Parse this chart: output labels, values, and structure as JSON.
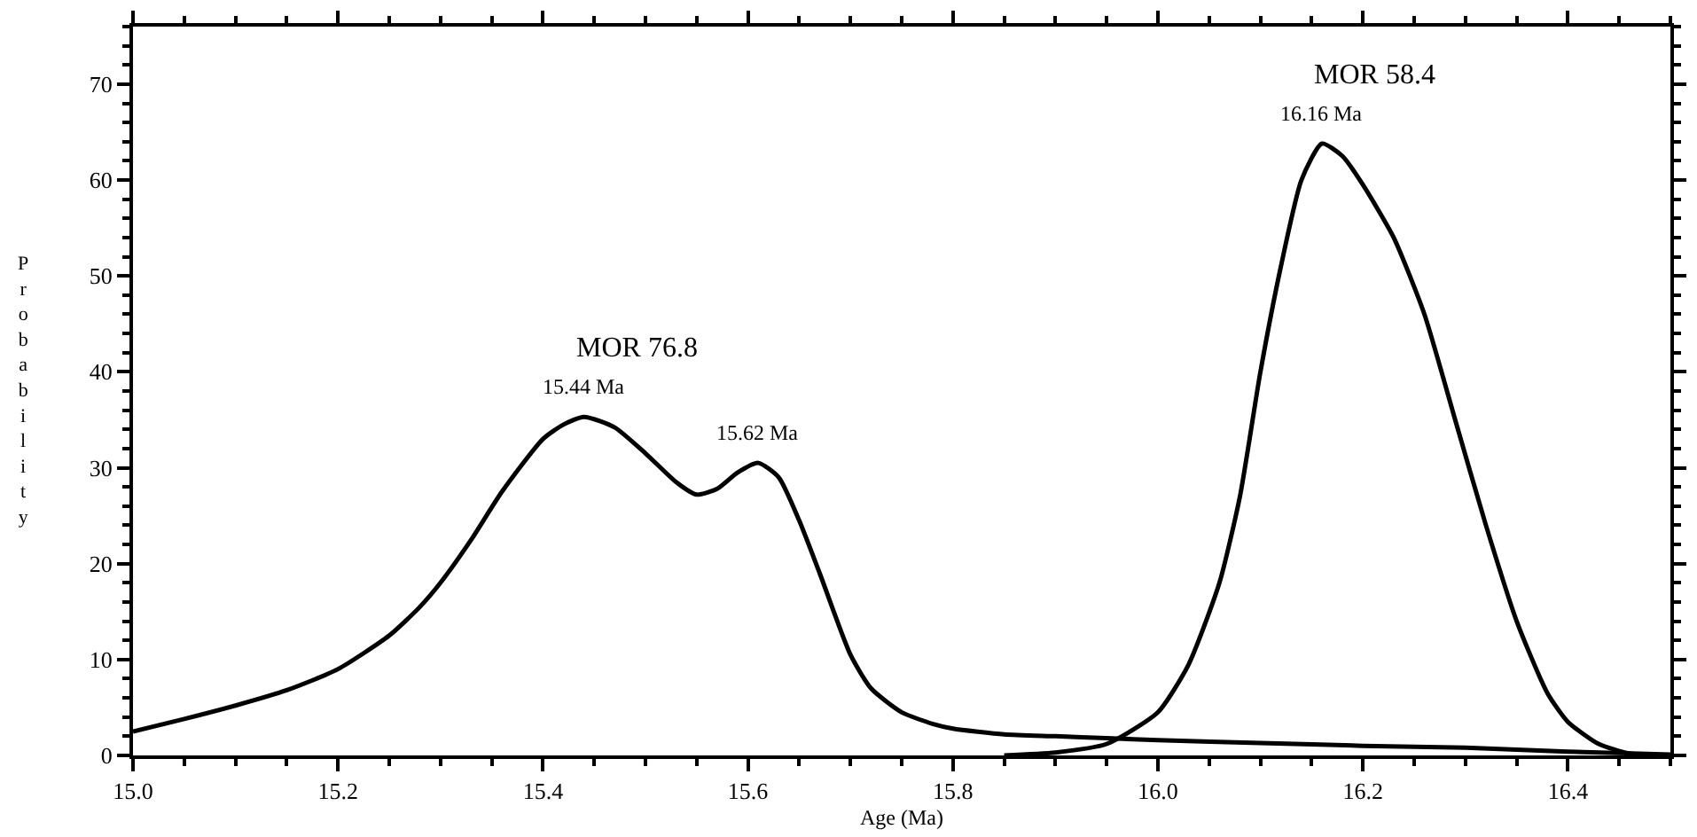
{
  "chart_data": {
    "type": "line",
    "xlabel": "Age (Ma)",
    "ylabel": "Probability",
    "xlim": [
      15.0,
      16.5
    ],
    "ylim": [
      0,
      76
    ],
    "xticks": [
      {
        "value": 15.0,
        "label": "15.0"
      },
      {
        "value": 15.2,
        "label": "15.2"
      },
      {
        "value": 15.4,
        "label": "15.4"
      },
      {
        "value": 15.6,
        "label": "15.6"
      },
      {
        "value": 15.8,
        "label": "15.8"
      },
      {
        "value": 16.0,
        "label": "16.0"
      },
      {
        "value": 16.2,
        "label": "16.2"
      },
      {
        "value": 16.4,
        "label": "16.4"
      }
    ],
    "yticks": [
      0,
      10,
      20,
      30,
      40,
      50,
      60,
      70
    ],
    "legend": false,
    "marker": "none",
    "line_style": "solid",
    "series": [
      {
        "name": "MOR 76.8",
        "color": "#000000",
        "x": [
          15.0,
          15.05,
          15.1,
          15.15,
          15.2,
          15.25,
          15.28,
          15.3,
          15.33,
          15.36,
          15.4,
          15.42,
          15.44,
          15.47,
          15.5,
          15.53,
          15.55,
          15.57,
          15.59,
          15.61,
          15.63,
          15.65,
          15.67,
          15.7,
          15.72,
          15.75,
          15.78,
          15.8,
          15.85,
          15.9,
          15.95,
          16.0,
          16.1,
          16.2,
          16.3,
          16.4,
          16.5
        ],
        "values": [
          2.5,
          3.8,
          5.2,
          6.8,
          9,
          12.5,
          15.5,
          18,
          22.5,
          27.5,
          33,
          34.5,
          35.3,
          34.2,
          31.5,
          28.5,
          27.2,
          27.8,
          29.5,
          30.5,
          29,
          24.5,
          19,
          10.5,
          7,
          4.5,
          3.3,
          2.8,
          2.2,
          2,
          1.8,
          1.6,
          1.3,
          1,
          0.8,
          0.4,
          0.1
        ]
      },
      {
        "name": "MOR 58.4",
        "color": "#000000",
        "x": [
          15.85,
          15.9,
          15.95,
          16.0,
          16.03,
          16.06,
          16.08,
          16.1,
          16.12,
          16.14,
          16.16,
          16.18,
          16.2,
          16.23,
          16.26,
          16.29,
          16.32,
          16.35,
          16.38,
          16.4,
          16.43,
          16.46,
          16.5
        ],
        "values": [
          0,
          0.3,
          1.2,
          4.5,
          9.5,
          18,
          27,
          40,
          51,
          60,
          63.8,
          62.5,
          59.5,
          54,
          46,
          35,
          24,
          14,
          6.5,
          3.5,
          1.2,
          0.2,
          0
        ]
      }
    ],
    "annotations": [
      {
        "text": "15.44 Ma",
        "x": 15.44,
        "y": 35.3
      },
      {
        "text": "15.62 Ma",
        "x": 15.61,
        "y": 30.5
      },
      {
        "text": "16.16 Ma",
        "x": 16.16,
        "y": 63.8
      }
    ]
  }
}
